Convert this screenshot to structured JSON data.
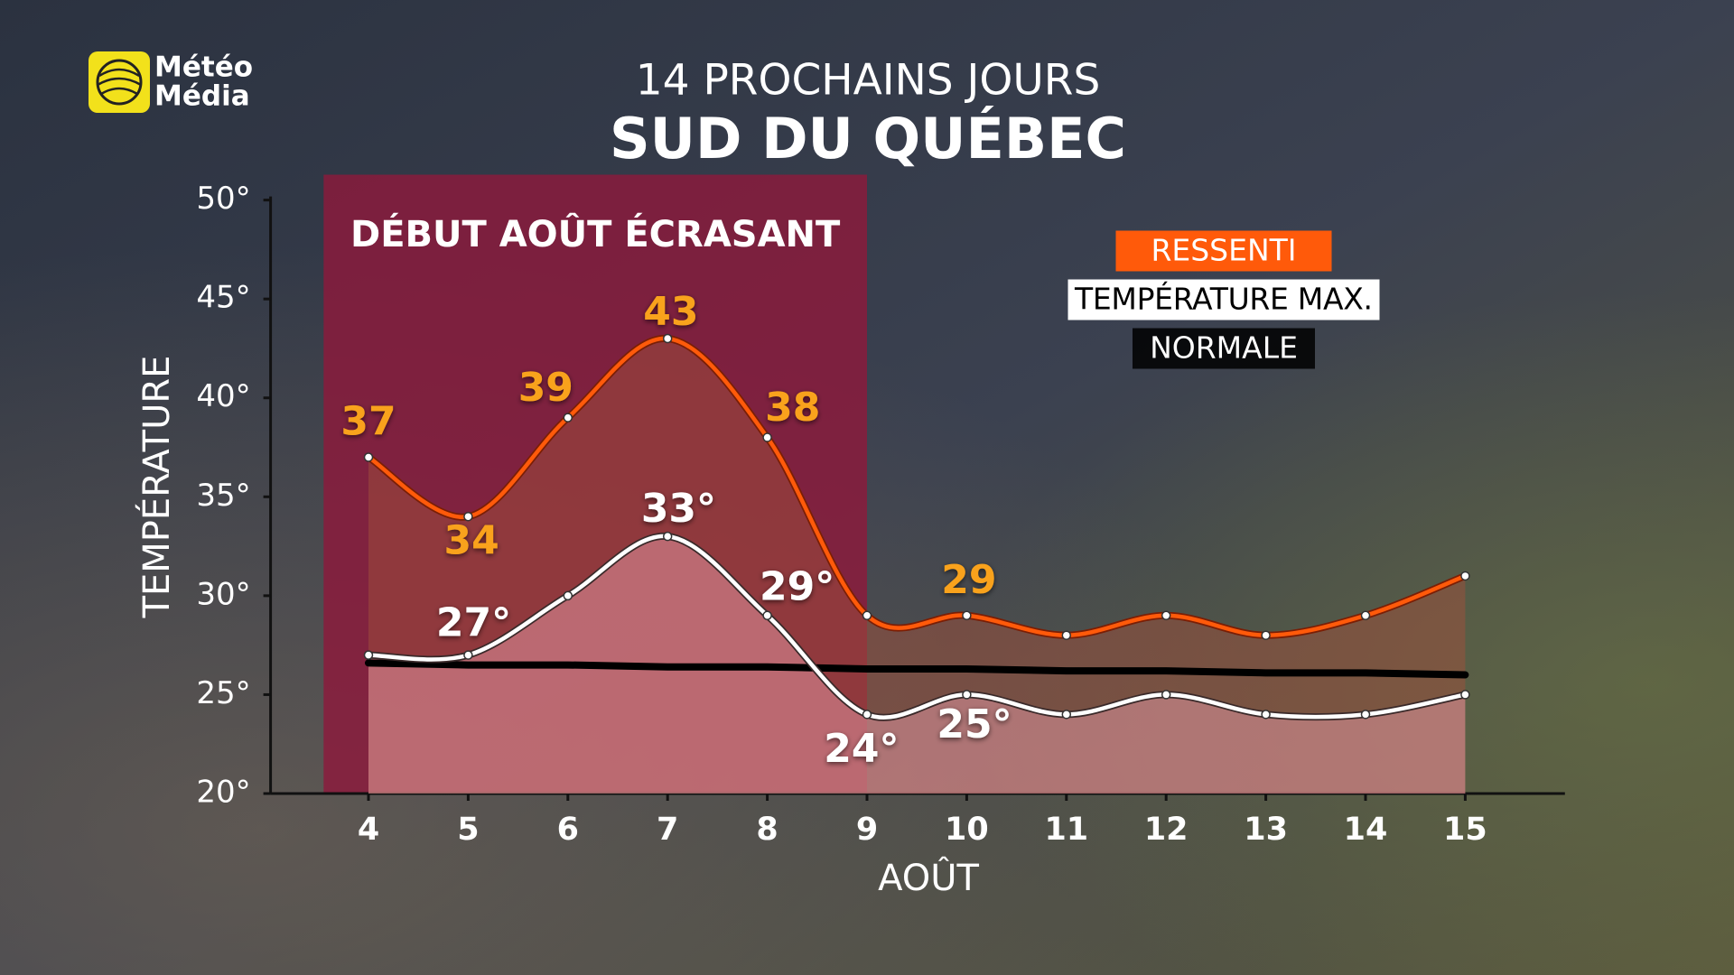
{
  "logo": {
    "lines": [
      "Météo",
      "Média"
    ]
  },
  "chart_data": {
    "type": "line",
    "title": "14 PROCHAINS JOURS",
    "subtitle": "SUD DU QUÉBEC",
    "xlabel": "AOÛT",
    "ylabel": "TEMPÉRATURE",
    "x": [
      4,
      5,
      6,
      7,
      8,
      9,
      10,
      11,
      12,
      13,
      14,
      15
    ],
    "xlim": [
      3,
      16
    ],
    "xticks": [
      4,
      5,
      6,
      7,
      8,
      9,
      10,
      11,
      12,
      13,
      14,
      15
    ],
    "ylim": [
      20,
      50
    ],
    "yticks": [
      {
        "value": 20,
        "label": "20°"
      },
      {
        "value": 25,
        "label": "25°"
      },
      {
        "value": 30,
        "label": "30°"
      },
      {
        "value": 35,
        "label": "35°"
      },
      {
        "value": 40,
        "label": "40°"
      },
      {
        "value": 45,
        "label": "45°"
      },
      {
        "value": 50,
        "label": "50°"
      }
    ],
    "highlight": {
      "label": "DÉBUT AOÛT ÉCRASANT",
      "x_range": [
        3.55,
        9
      ],
      "color": "#8c1a3c"
    },
    "series": [
      {
        "name": "RESSENTI",
        "color": "#ff5a0a",
        "area_color": "#a0503c",
        "label_color": "#f9a21b",
        "values": [
          37,
          34,
          39,
          43,
          38,
          29,
          29,
          28,
          29,
          28,
          29,
          31
        ],
        "value_labels": [
          "37",
          "34",
          "39",
          "43",
          "38",
          null,
          "29",
          null,
          null,
          null,
          null,
          null
        ]
      },
      {
        "name": "TEMPÉRATURE MAX.",
        "color": "#ffffff",
        "area_color": "#e59aa5",
        "label_color": "#ffffff",
        "values": [
          27,
          27,
          30,
          33,
          29,
          24,
          25,
          24,
          25,
          24,
          24,
          25
        ],
        "value_labels": [
          null,
          "27°",
          null,
          "33°",
          "29°",
          "24°",
          "25°",
          null,
          null,
          null,
          null,
          null
        ]
      },
      {
        "name": "NORMALE",
        "color": "#000000",
        "values": [
          26.6,
          26.5,
          26.5,
          26.4,
          26.4,
          26.3,
          26.3,
          26.2,
          26.2,
          26.1,
          26.1,
          26.0
        ]
      }
    ]
  }
}
